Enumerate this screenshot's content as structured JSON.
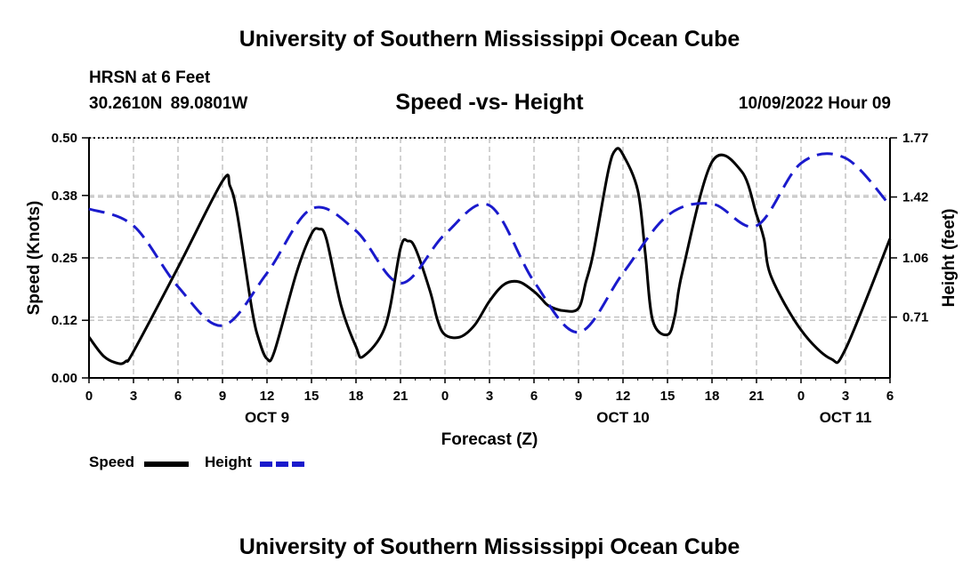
{
  "header": {
    "top_title": "University of Southern Mississippi Ocean Cube",
    "station": "HRSN at 6 Feet",
    "coords": "30.2610N  89.0801W",
    "chart_title": "Speed -vs- Height",
    "datestamp": "10/09/2022 Hour 09",
    "bottom_title": "University of Southern Mississippi Ocean Cube"
  },
  "legend": {
    "speed_label": "Speed",
    "height_label": "Height"
  },
  "colors": {
    "speed": "#000000",
    "height": "#1a1acc",
    "grid": "#b4b4b4"
  },
  "chart_data": {
    "type": "line",
    "title": "Speed -vs- Height",
    "xlabel": "Forecast (Z)",
    "ylabel": "Speed (Knots)",
    "y2label": "Height (feet)",
    "xlim": [
      0,
      54
    ],
    "ylim": [
      0,
      0.5
    ],
    "y2lim": [
      0.35,
      1.77
    ],
    "yticks": [
      "0.00",
      "0.12",
      "0.25",
      "0.38",
      "0.50"
    ],
    "y2ticks": [
      "0.71",
      "1.06",
      "1.42",
      "1.77"
    ],
    "xticks": [
      "0",
      "3",
      "6",
      "9",
      "12",
      "15",
      "18",
      "21",
      "0",
      "3",
      "6",
      "9",
      "12",
      "15",
      "18",
      "21",
      "0",
      "3",
      "6"
    ],
    "day_labels": [
      {
        "x": 12,
        "label": "OCT 9"
      },
      {
        "x": 36,
        "label": "OCT 10"
      },
      {
        "x": 51,
        "label": "OCT 11"
      }
    ],
    "series": [
      {
        "name": "Speed",
        "axis": "left",
        "style": "solid",
        "x": [
          0,
          1,
          2,
          2.5,
          3,
          6,
          9,
          9.5,
          10,
          11,
          11.5,
          12,
          12.5,
          14,
          15,
          15.5,
          16,
          17,
          18,
          18.5,
          20,
          21,
          21.5,
          22,
          23,
          23.5,
          24,
          25,
          26,
          27,
          28,
          29,
          30,
          30.5,
          31,
          32,
          33,
          33.5,
          34,
          35,
          35.5,
          36,
          37,
          37.5,
          38,
          39,
          39.5,
          40,
          42,
          44,
          45,
          45.5,
          46,
          48,
          50,
          51,
          54
        ],
        "values": [
          0.085,
          0.045,
          0.03,
          0.035,
          0.055,
          0.23,
          0.41,
          0.4,
          0.34,
          0.14,
          0.075,
          0.04,
          0.055,
          0.22,
          0.3,
          0.31,
          0.29,
          0.15,
          0.065,
          0.045,
          0.11,
          0.27,
          0.285,
          0.27,
          0.18,
          0.12,
          0.09,
          0.085,
          0.11,
          0.16,
          0.195,
          0.2,
          0.18,
          0.165,
          0.15,
          0.14,
          0.145,
          0.2,
          0.26,
          0.43,
          0.475,
          0.465,
          0.39,
          0.26,
          0.12,
          0.09,
          0.13,
          0.22,
          0.45,
          0.43,
          0.34,
          0.29,
          0.21,
          0.1,
          0.04,
          0.06,
          0.29
        ]
      },
      {
        "name": "Height",
        "axis": "right",
        "style": "dashed",
        "x": [
          0,
          3,
          6,
          9,
          12,
          15,
          18,
          21,
          24,
          27,
          30,
          33,
          36,
          39,
          42,
          45,
          48,
          51,
          54
        ],
        "values": [
          1.35,
          1.25,
          0.89,
          0.66,
          0.97,
          1.35,
          1.22,
          0.91,
          1.2,
          1.37,
          0.92,
          0.62,
          0.97,
          1.31,
          1.38,
          1.25,
          1.62,
          1.65,
          1.37
        ]
      }
    ]
  }
}
